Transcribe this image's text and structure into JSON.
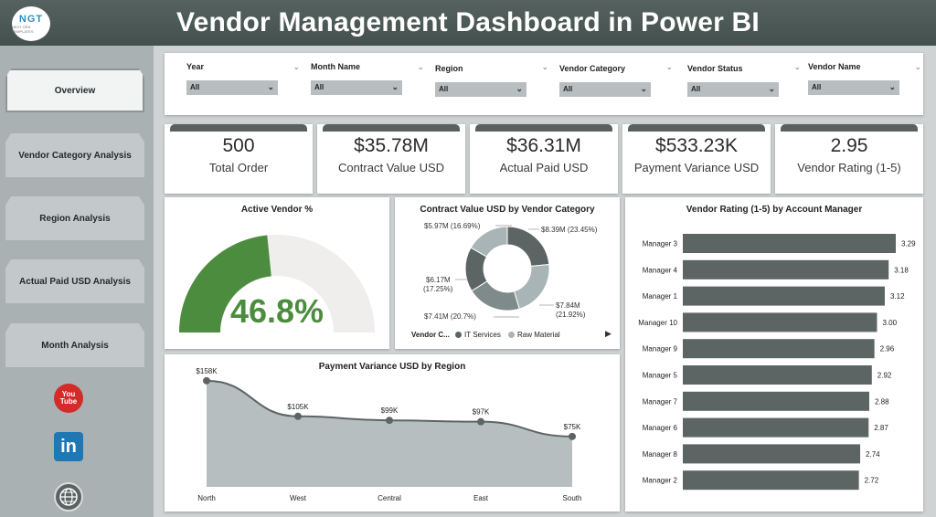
{
  "header": {
    "title": "Vendor Management Dashboard in Power BI",
    "logo_text": "NGT",
    "logo_sub": "NEXT GEN TEMPLATES"
  },
  "sidebar": {
    "items": [
      {
        "label": "Overview"
      },
      {
        "label": "Vendor Category Analysis"
      },
      {
        "label": "Region Analysis"
      },
      {
        "label": "Actual Paid USD Analysis"
      },
      {
        "label": "Month Analysis"
      }
    ],
    "youtube_text": "You Tube",
    "linkedin_text": "in"
  },
  "filters": [
    {
      "label": "Year",
      "value": "All"
    },
    {
      "label": "Month Name",
      "value": "All"
    },
    {
      "label": "Region",
      "value": "All"
    },
    {
      "label": "Vendor Category",
      "value": "All"
    },
    {
      "label": "Vendor Status",
      "value": "All"
    },
    {
      "label": "Vendor Name",
      "value": "All"
    }
  ],
  "kpis": [
    {
      "value": "500",
      "label": "Total Order"
    },
    {
      "value": "$35.78M",
      "label": "Contract Value USD"
    },
    {
      "value": "$36.31M",
      "label": "Actual Paid USD"
    },
    {
      "value": "$533.23K",
      "label": "Payment Variance USD"
    },
    {
      "value": "2.95",
      "label": "Vendor Rating (1-5)"
    }
  ],
  "colors": {
    "accent_green": "#4c8c3f",
    "dark_gray": "#5c6564",
    "light_gray": "#a9b4b6",
    "header": "#4a5653"
  },
  "gauge": {
    "title": "Active Vendor %",
    "value_text": "46.8%",
    "value": 0.468
  },
  "donut": {
    "title": "Contract Value USD by Vendor Category",
    "legend_title": "Vendor C...",
    "legend": [
      "IT Services",
      "Raw Material"
    ],
    "labels": [
      "$8.39M (23.45%)",
      "$7.84M",
      "(21.92%)",
      "$7.41M (20.7%)",
      "$6.17M",
      "(17.25%)",
      "$5.97M (16.69%)"
    ]
  },
  "chart_data": [
    {
      "type": "pie",
      "title": "Contract Value USD by Vendor Category",
      "categories": [
        "",
        "",
        "",
        "",
        ""
      ],
      "values": [
        8.39,
        7.84,
        7.41,
        6.17,
        5.97
      ],
      "percents": [
        23.45,
        21.92,
        20.7,
        17.25,
        16.69
      ],
      "legend": [
        "IT Services",
        "Raw Material"
      ],
      "colors": [
        "#5c6564",
        "#a9b4b6",
        "#7f8a8b",
        "#5c6564",
        "#a9b4b6"
      ]
    },
    {
      "type": "area",
      "title": "Payment Variance USD by Region",
      "categories": [
        "North",
        "West",
        "Central",
        "East",
        "South"
      ],
      "values": [
        158,
        105,
        99,
        97,
        75
      ],
      "labels": [
        "$158K",
        "$105K",
        "$99K",
        "$97K",
        "$75K"
      ],
      "ylim": [
        0,
        170
      ]
    },
    {
      "type": "bar",
      "orientation": "horizontal",
      "title": "Vendor Rating (1-5) by Account Manager",
      "categories": [
        "Manager 3",
        "Manager 4",
        "Manager 1",
        "Manager 10",
        "Manager 9",
        "Manager 5",
        "Manager 7",
        "Manager 6",
        "Manager 8",
        "Manager 2"
      ],
      "values": [
        3.29,
        3.18,
        3.12,
        3.0,
        2.96,
        2.92,
        2.88,
        2.87,
        2.74,
        2.72
      ],
      "labels": [
        "3.29",
        "3.18",
        "3.12",
        "3.00",
        "2.96",
        "2.92",
        "2.88",
        "2.87",
        "2.74",
        "2.72"
      ]
    }
  ]
}
